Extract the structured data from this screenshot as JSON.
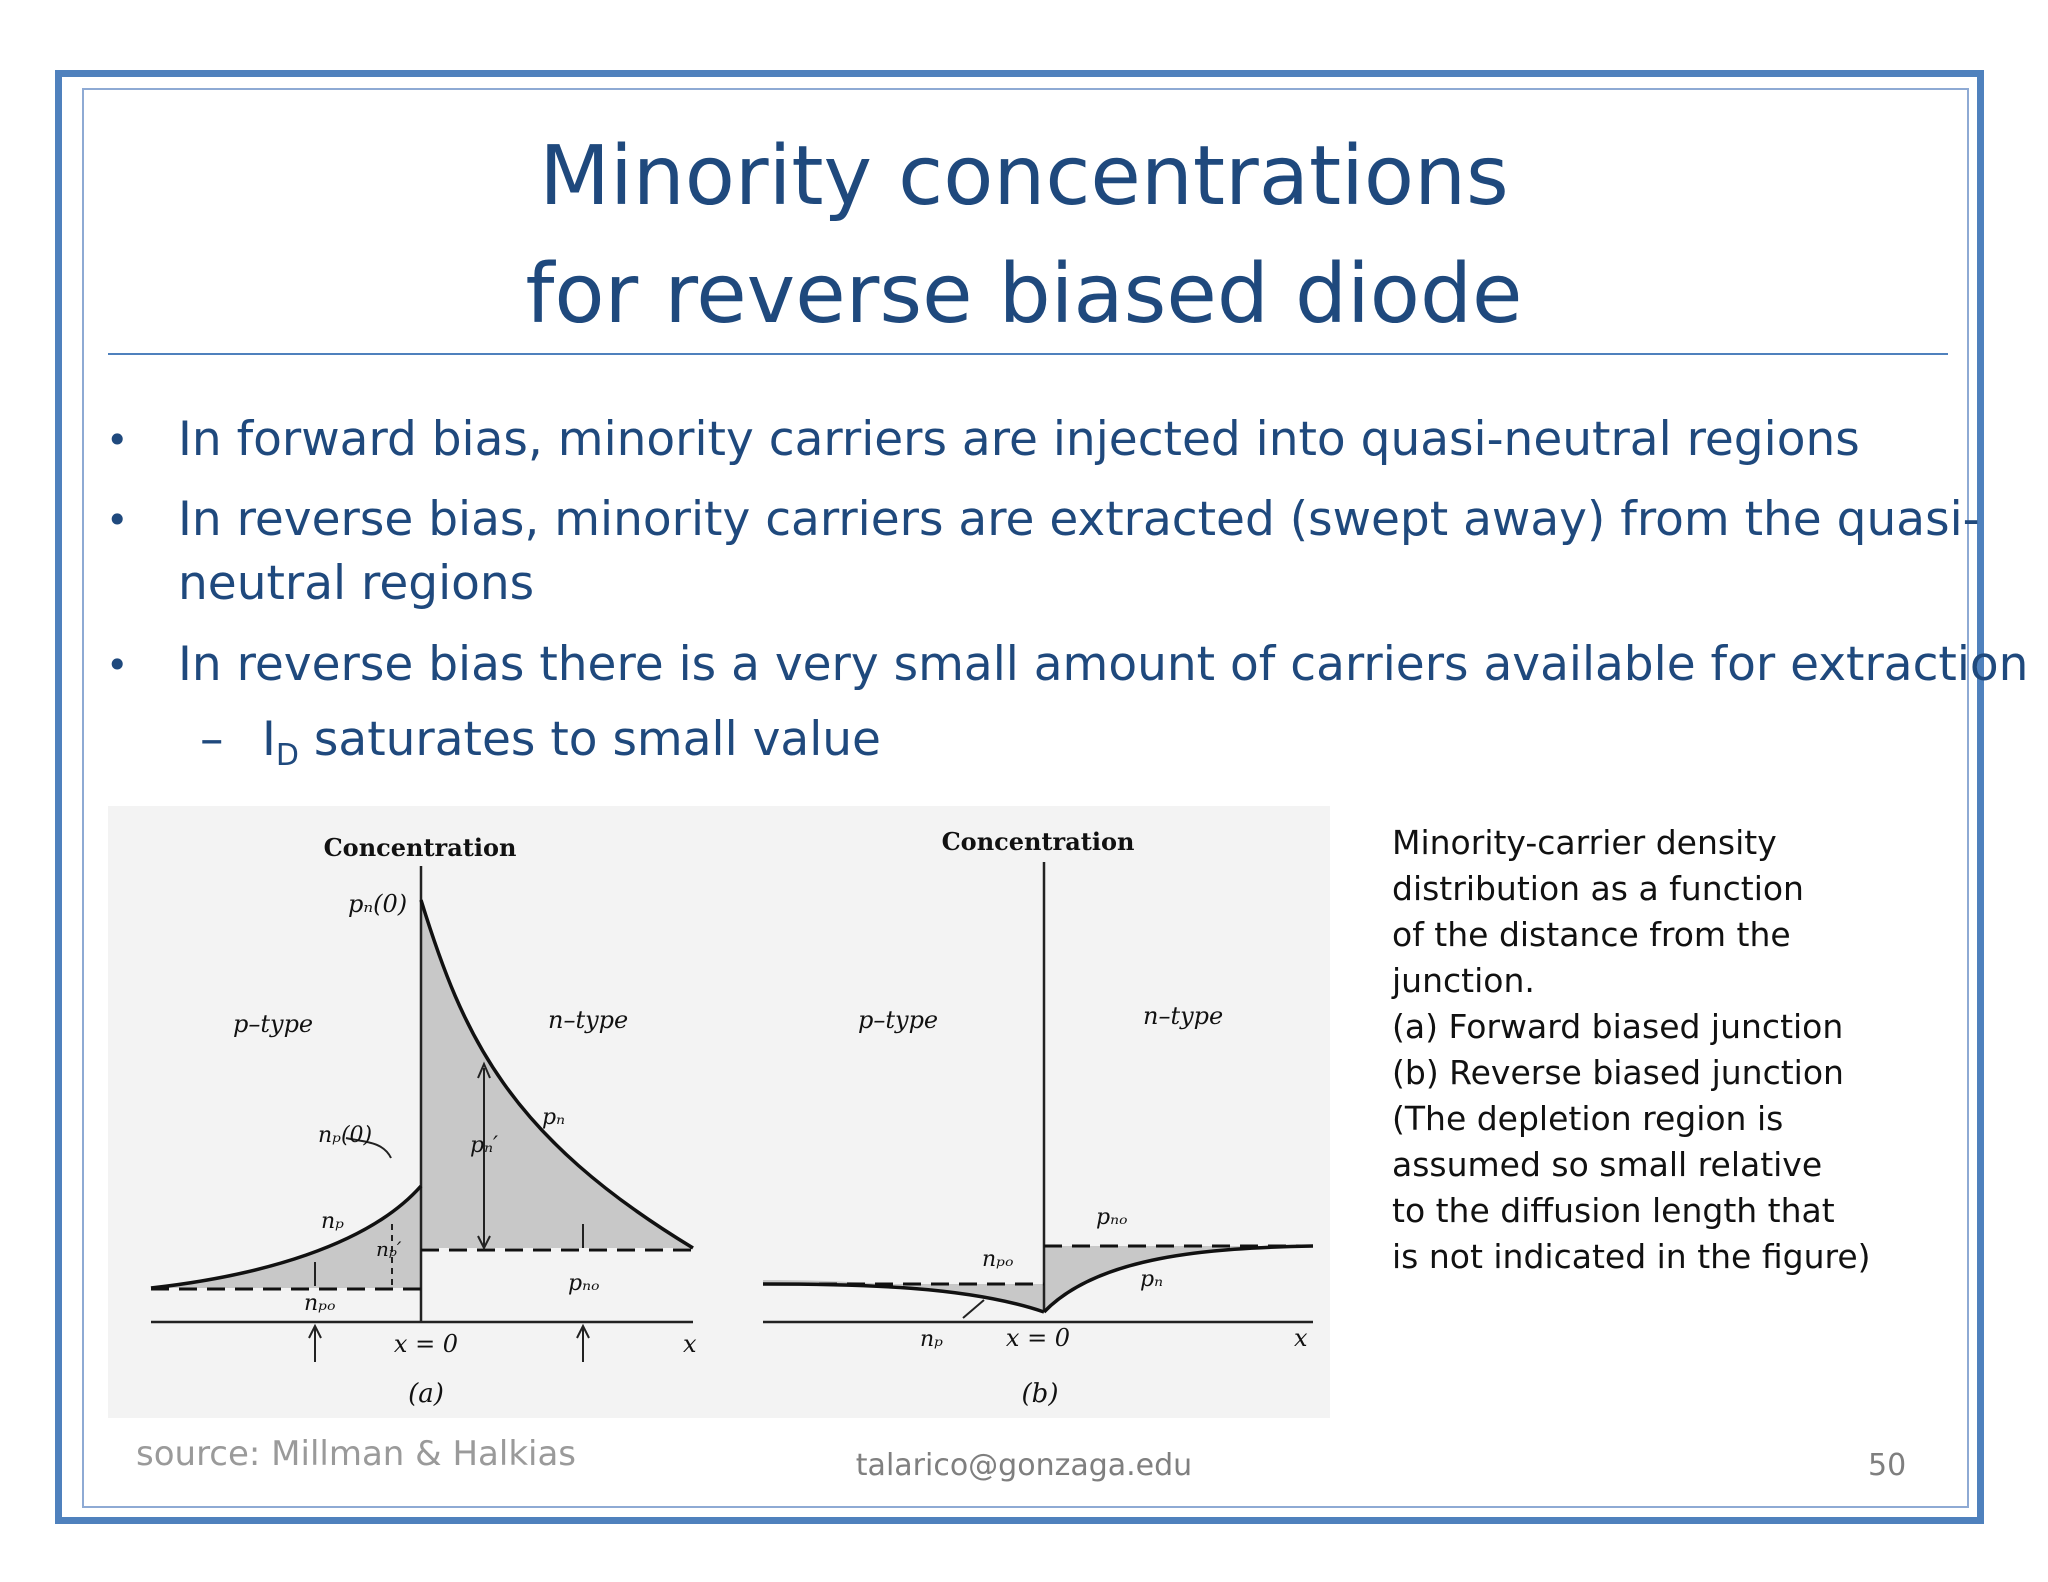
{
  "slide": {
    "title_line1": "Minority concentrations",
    "title_line2": "for reverse biased diode",
    "bullets": [
      {
        "marker": "•",
        "line1": "In forward bias, minority carriers are injected into quasi-neutral regions"
      },
      {
        "marker": "•",
        "line1": "In reverse bias, minority carriers are extracted (swept away) from the quasi-",
        "line2": "neutral regions"
      },
      {
        "marker": "•",
        "line1": "In reverse bias there is a very small amount of carriers available for extraction"
      }
    ],
    "sub_bullet": {
      "marker": "–",
      "symbol": "I",
      "subscript": "D",
      "text": " saturates to small value"
    },
    "caption_lines": [
      "Minority-carrier density",
      "distribution as a function",
      "of the distance from the",
      "junction.",
      "(a) Forward biased junction",
      "(b) Reverse biased junction",
      "(The depletion region is",
      "assumed so small relative",
      "to the diffusion length that",
      "is not indicated in the figure)"
    ],
    "footer": {
      "source": "source: Millman & Halkias",
      "email": "talarico@gonzaga.edu",
      "page": "50"
    }
  },
  "figure": {
    "a": {
      "axis_label": "Concentration",
      "label_pn0": "pₙ(0)",
      "label_ptype": "p–type",
      "label_ntype": "n–type",
      "label_np0": "nₚ(0)",
      "label_pn": "pₙ",
      "label_pn_prime": "pₙ′",
      "label_np": "nₚ",
      "label_np_prime": "nₚ′",
      "label_npo": "nₚₒ",
      "label_pno": "pₙₒ",
      "label_x0": "x = 0",
      "label_x": "x",
      "label_caption": "(a)"
    },
    "b": {
      "axis_label": "Concentration",
      "label_ptype": "p–type",
      "label_ntype": "n–type",
      "label_pno": "pₙₒ",
      "label_npo": "nₚₒ",
      "label_pn": "pₙ",
      "label_np": "nₚ",
      "label_x0": "x = 0",
      "label_x": "x",
      "label_caption": "(b)"
    }
  }
}
